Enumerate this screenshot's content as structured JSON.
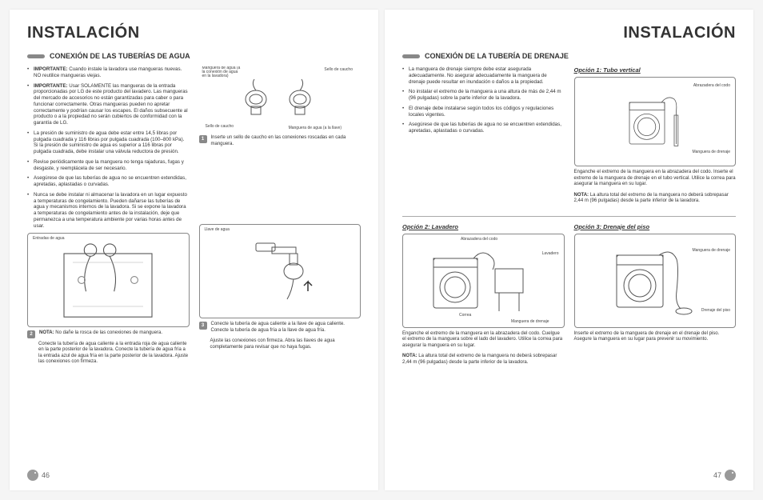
{
  "leftPage": {
    "header": "INSTALACIÓN",
    "sectionTitle": "CONEXIÓN DE LAS TUBERÍAS DE AGUA",
    "bullets": [
      "<b>IMPORTANTE:</b> Cuando instale la lavadora use mangueras nuevas. NO reutilice mangueras viejas.",
      "<b>IMPORTANTE:</b> Usar SOLAMENTE las mangueras de la entrada proporcionadas por LG de este producto del lavadero. Las mangueras del mercado de accesorios no están garantizadas para caber o para funcionar correctamente. Otras mangueras pueden no apretar correctamente y podrían causar los escapes. El daños subsecuente al producto o a la propiedad no serán cubiertos de conformidad con la garantía de LG.",
      "La presión de suministro de agua debe estar entre 14,5 libras por pulgada cuadrada y 116 libras por pulgada cuadrada (100–800 kPa). Si la presión de suministro de agua es superior a 116 libras por pulgada cuadrada, debe instalar una válvula reductora de presión.",
      "Revise periódicamente que la manguera no tenga rajaduras, fugas y desgaste, y reemplácela de ser necesario.",
      "Asegúrese de que las tuberías de agua no se encuentren extendidas, apretadas, aplastadas o curvadas.",
      "Nunca se debe instalar ni almacenar la lavadora en un lugar expuesto a temperaturas de congelamiento. Pueden dañarse las tuberías de agua y mecanismos internos de la lavadora. Si se expone la lavadora a temperaturas de congelamiento antes de la instalación, deje que permanezca a una temperatura ambiente por varias horas antes de usar."
    ],
    "fig1": {
      "labels": {
        "hoseWasher": "Manguera de agua (a\nla conexión de agua\nen la lavadora)",
        "rubberSeal1": "Sello de caucho",
        "rubberSeal2": "Sello de caucho",
        "hoseFaucet": "Manguera\nde agua\n(a la llave)"
      },
      "caption": "Inserte un sello de caucho en las conexiones roscadas en cada manguera.",
      "num": "1"
    },
    "fig2": {
      "label": "Entradas\nde agua",
      "num": "2",
      "note": "<b>NOTA:</b> No dañe la rosca de las conexiones de manguera.",
      "caption": "Conecte la tubería de agua caliente a la entrada roja de agua caliente en la parte posterior de la lavadora. Conecte la tubería de agua fría a la entrada azul de agua fría en la parte posterior de la lavadora. Ajuste las conexiones con firmeza."
    },
    "fig3": {
      "label": "Llave de agua",
      "num": "3",
      "caption1": "Conecte la tubería de agua caliente a la llave de agua caliente. Conecte la tubería de agua fría a la llave de agua fría.",
      "caption2": "Ajuste las conexiones con firmeza. Abra las llaves de agua completamente para revisar que no haya fugas."
    },
    "pageNum": "46"
  },
  "rightPage": {
    "header": "INSTALACIÓN",
    "sectionTitle": "CONEXIÓN DE LA TUBERÍA DE DRENAJE",
    "bullets": [
      "La manguera de drenaje siempre debe estar asegurada adecuadamente. No asegurar adecuadamente la manguera de drenaje puede resultar en inundación o daños a la propiedad.",
      "No instalar el extremo de la manguera a una altura de más de 2,44 m (96 pulgadas) sobre la parte inferior de la lavadora.",
      "El drenaje debe instalarse según todos los códigos y regulaciones locales vigentes.",
      "Asegúrese de que las tuberías de agua no se encuentren extendidas, apretadas, aplastadas o curvadas."
    ],
    "opt1": {
      "title": "Opción 1: Tubo vertical",
      "labels": {
        "clamp": "Abrazadera\ndel codo",
        "hose": "Manguera\nde drenaje"
      },
      "caption": "Enganche el extremo de la manguera en la abrazadera del codo. Inserte el extremo de la manguera de drenaje en el tubo vertical. Utilice la correa para asegurar la manguera en su lugar.",
      "note": "<b>NOTA:</b> La altura total del extremo de la manguera no deberá sobrepasar 2,44 m (96 pulgadas) desde la parte inferior de la lavadora."
    },
    "opt2": {
      "title": "Opción 2: Lavadero",
      "labels": {
        "clamp": "Abrazadera\ndel codo",
        "tub": "Lavadero",
        "strap": "Correa",
        "hose": "Manguera\nde drenaje"
      },
      "caption": "Enganche el extremo de la manguera en la abrazadera del codo. Cuelgue el extremo de la manguera sobre el lado del lavadero. Utilice la correa para asegurar la manguera en su lugar.",
      "note": "<b>NOTA:</b> La altura total del extremo de la manguera no deberá sobrepasar 2,44 m (96 pulgadas) desde la parte inferior de la lavadora."
    },
    "opt3": {
      "title": "Opción 3: Drenaje del piso",
      "labels": {
        "hose": "Manguera\nde drenaje",
        "floor": "Drenaje\ndel piso"
      },
      "caption": "Inserte el extremo de la manguera de drenaje en el drenaje del piso. Asegure la manguera en su lugar para prevenir su movimiento."
    },
    "pageNum": "47"
  }
}
